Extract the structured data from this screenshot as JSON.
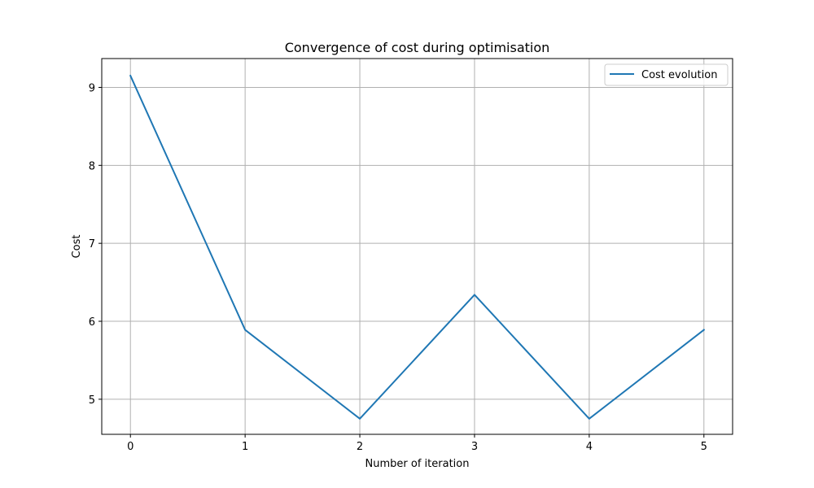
{
  "chart_data": {
    "type": "line",
    "title": "Convergence of cost during optimisation",
    "xlabel": "Number of iteration",
    "ylabel": "Cost",
    "x": [
      0,
      1,
      2,
      3,
      4,
      5
    ],
    "series": [
      {
        "name": "Cost evolution",
        "color": "#1f77b4",
        "values": [
          9.15,
          5.89,
          4.75,
          6.34,
          4.75,
          5.89
        ]
      }
    ],
    "xticks": [
      0,
      1,
      2,
      3,
      4,
      5
    ],
    "xtick_labels": [
      "0",
      "1",
      "2",
      "3",
      "4",
      "5"
    ],
    "yticks": [
      5,
      6,
      7,
      8,
      9
    ],
    "ytick_labels": [
      "5",
      "6",
      "7",
      "8",
      "9"
    ],
    "xlim": [
      -0.25,
      5.25
    ],
    "ylim": [
      4.55,
      9.37
    ],
    "grid": true,
    "legend_position": "top-right"
  }
}
